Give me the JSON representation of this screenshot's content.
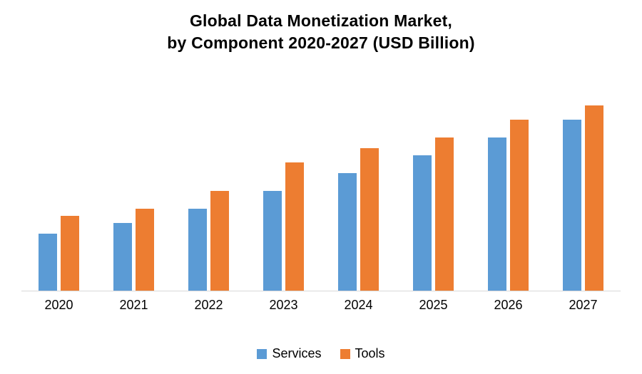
{
  "chart_data": {
    "type": "bar",
    "title_line1": "Global Data Monetization Market,",
    "title_line2": "by Component 2020-2027 (USD Billion)",
    "categories": [
      "2020",
      "2021",
      "2022",
      "2023",
      "2024",
      "2025",
      "2026",
      "2027"
    ],
    "series": [
      {
        "name": "Services",
        "color": "#5B9BD5",
        "values": [
          1.6,
          1.9,
          2.3,
          2.8,
          3.3,
          3.8,
          4.3,
          4.8
        ]
      },
      {
        "name": "Tools",
        "color": "#ED7D31",
        "values": [
          2.1,
          2.3,
          2.8,
          3.6,
          4.0,
          4.3,
          4.8,
          5.2
        ]
      }
    ],
    "ylim": [
      0,
      6
    ],
    "grid": false,
    "y_axis_visible": false,
    "legend_position": "bottom",
    "xlabel": "",
    "ylabel": ""
  }
}
